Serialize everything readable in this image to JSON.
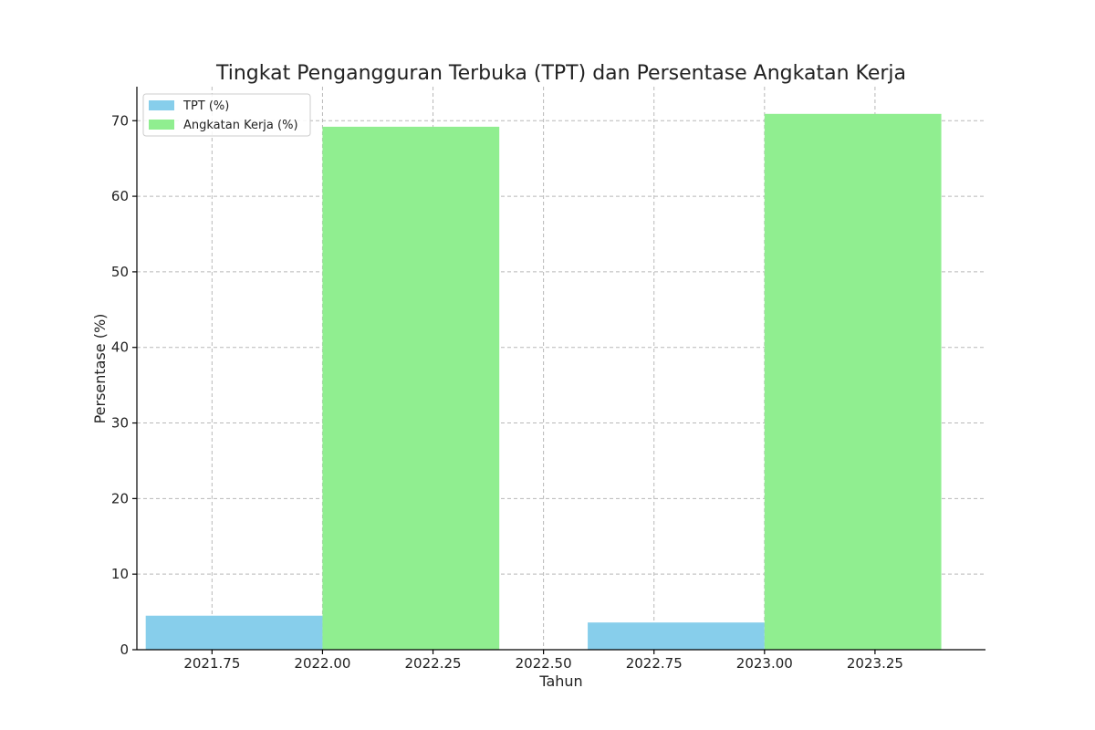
{
  "chart_data": {
    "type": "bar",
    "title": "Tingkat Pengangguran Terbuka (TPT) dan Persentase Angkatan Kerja",
    "xlabel": "Tahun",
    "ylabel": "Persentase (%)",
    "xlim": [
      2021.58,
      2023.5
    ],
    "ylim": [
      0,
      74.5
    ],
    "x_ticks": [
      2021.75,
      2022.0,
      2022.25,
      2022.5,
      2022.75,
      2023.0,
      2023.25
    ],
    "x_tick_labels": [
      "2021.75",
      "2022.00",
      "2022.25",
      "2022.50",
      "2022.75",
      "2023.00",
      "2023.25"
    ],
    "y_ticks": [
      0,
      10,
      20,
      30,
      40,
      50,
      60,
      70
    ],
    "y_tick_labels": [
      "0",
      "10",
      "20",
      "30",
      "40",
      "50",
      "60",
      "70"
    ],
    "grid": true,
    "legend_position": "top-left",
    "categories": [
      2022,
      2023
    ],
    "bar_width": 0.4,
    "series": [
      {
        "name": "TPT (%)",
        "color": "#87ceeb",
        "x_offset": -0.2,
        "values": [
          4.5,
          3.6
        ]
      },
      {
        "name": "Angkatan Kerja (%)",
        "color": "#90ee90",
        "x_offset": 0.2,
        "values": [
          69.2,
          70.9
        ]
      }
    ]
  }
}
